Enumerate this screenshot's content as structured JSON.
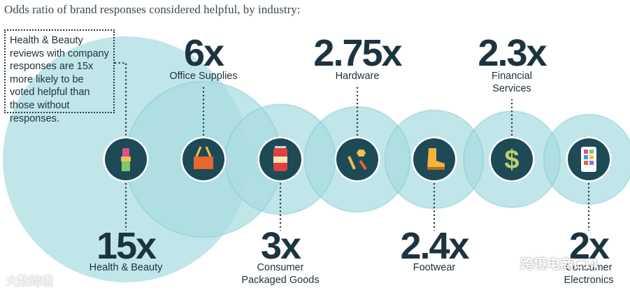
{
  "title": "Odds ratio of brand responses considered helpful, by industry:",
  "note": "Health & Beauty reviews with company responses are 15x more likely to be voted helpful than those without responses.",
  "watermark_left": "大数跨境",
  "watermark_right": "跨境电商C14",
  "colors": {
    "circle_light": "#a9dde1",
    "circle_mid": "#6fc3c9",
    "icon_bg": "#1e4a57",
    "icon_ring": "#ffffff",
    "value_text": "#1c3340",
    "label_text": "#1f2f3c",
    "connector": "#2a3b46"
  },
  "chart_data": {
    "type": "bubble",
    "unit": "x",
    "categories": [
      {
        "name": "Health & Beauty",
        "lines": [
          "Health & Beauty"
        ],
        "value": 15,
        "label": "15x",
        "position": "bottom",
        "icon": "lipstick-icon"
      },
      {
        "name": "Office Supplies",
        "lines": [
          "Office Supplies"
        ],
        "value": 6,
        "label": "6x",
        "position": "top",
        "icon": "binder-clip-icon"
      },
      {
        "name": "Consumer Packaged Goods",
        "lines": [
          "Consumer",
          "Packaged Goods"
        ],
        "value": 3,
        "label": "3x",
        "position": "bottom",
        "icon": "soda-can-icon"
      },
      {
        "name": "Hardware",
        "lines": [
          "Hardware"
        ],
        "value": 2.75,
        "label": "2.75x",
        "position": "top",
        "icon": "bolts-icon"
      },
      {
        "name": "Footwear",
        "lines": [
          "Footwear"
        ],
        "value": 2.4,
        "label": "2.4x",
        "position": "bottom",
        "icon": "boot-icon"
      },
      {
        "name": "Financial Services",
        "lines": [
          "Financial",
          "Services"
        ],
        "value": 2.3,
        "label": "2.3x",
        "position": "top",
        "icon": "dollar-icon"
      },
      {
        "name": "Consumer Electronics",
        "lines": [
          "Consumer",
          "Electronics"
        ],
        "value": 2,
        "label": "2x",
        "position": "bottom",
        "icon": "phone-icon"
      }
    ]
  }
}
